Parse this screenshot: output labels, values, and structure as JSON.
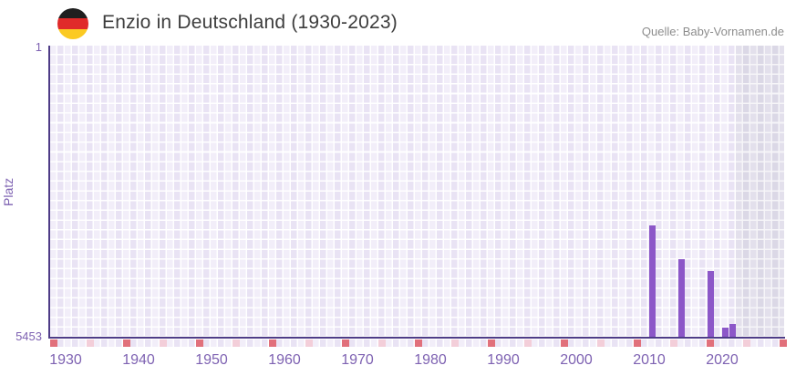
{
  "header": {
    "title": "Enzio in Deutschland (1930-2023)",
    "source": "Quelle: Baby-Vornamen.de",
    "flag": {
      "icon": "german-flag-icon",
      "stripe_colors": [
        "#1f1f1f",
        "#e02a2a",
        "#fbca23"
      ]
    }
  },
  "chart_data": {
    "type": "bar",
    "title": "Enzio in Deutschland (1930-2023)",
    "xlabel": "",
    "ylabel": "Platz",
    "y_axis": {
      "top_label": "1",
      "bottom_label": "5453",
      "min": 1,
      "max": 5453,
      "inverted": true
    },
    "x_axis": {
      "data_start": 1930,
      "data_end": 2023,
      "display_end": 2030,
      "label_years": [
        1930,
        1940,
        1950,
        1960,
        1970,
        1980,
        1990,
        2000,
        2010,
        2020
      ],
      "major_tick_years": [
        1930,
        1940,
        1950,
        1960,
        1970,
        1980,
        1990,
        2000,
        2010,
        2020,
        2030
      ],
      "minor_tick_years": [
        1935,
        1945,
        1955,
        1965,
        1975,
        1985,
        1995,
        2005,
        2015,
        2025
      ],
      "future_region_start": 2024
    },
    "series": [
      {
        "name": "Platz",
        "points": [
          {
            "year": 2012,
            "rank": 3350
          },
          {
            "year": 2016,
            "rank": 3990
          },
          {
            "year": 2020,
            "rank": 4210
          },
          {
            "year": 2022,
            "rank": 5270
          },
          {
            "year": 2023,
            "rank": 5200
          }
        ]
      }
    ],
    "legend": null,
    "grid": "checkered",
    "colors": {
      "bar": "#8c57c8",
      "axis_line": "#4e3c87",
      "tick_major": "#e1707b",
      "tick_minor": "#f3ced9",
      "grid_cell_light": "#f2eef9",
      "grid_cell_alt": "#e9e3f4",
      "future_cell_light": "#e3e0ec",
      "future_cell_alt": "#dbd8e6",
      "axis_text": "#7e62b2",
      "title_text": "#3d3d3d",
      "source_text": "#8d8d8d"
    }
  }
}
